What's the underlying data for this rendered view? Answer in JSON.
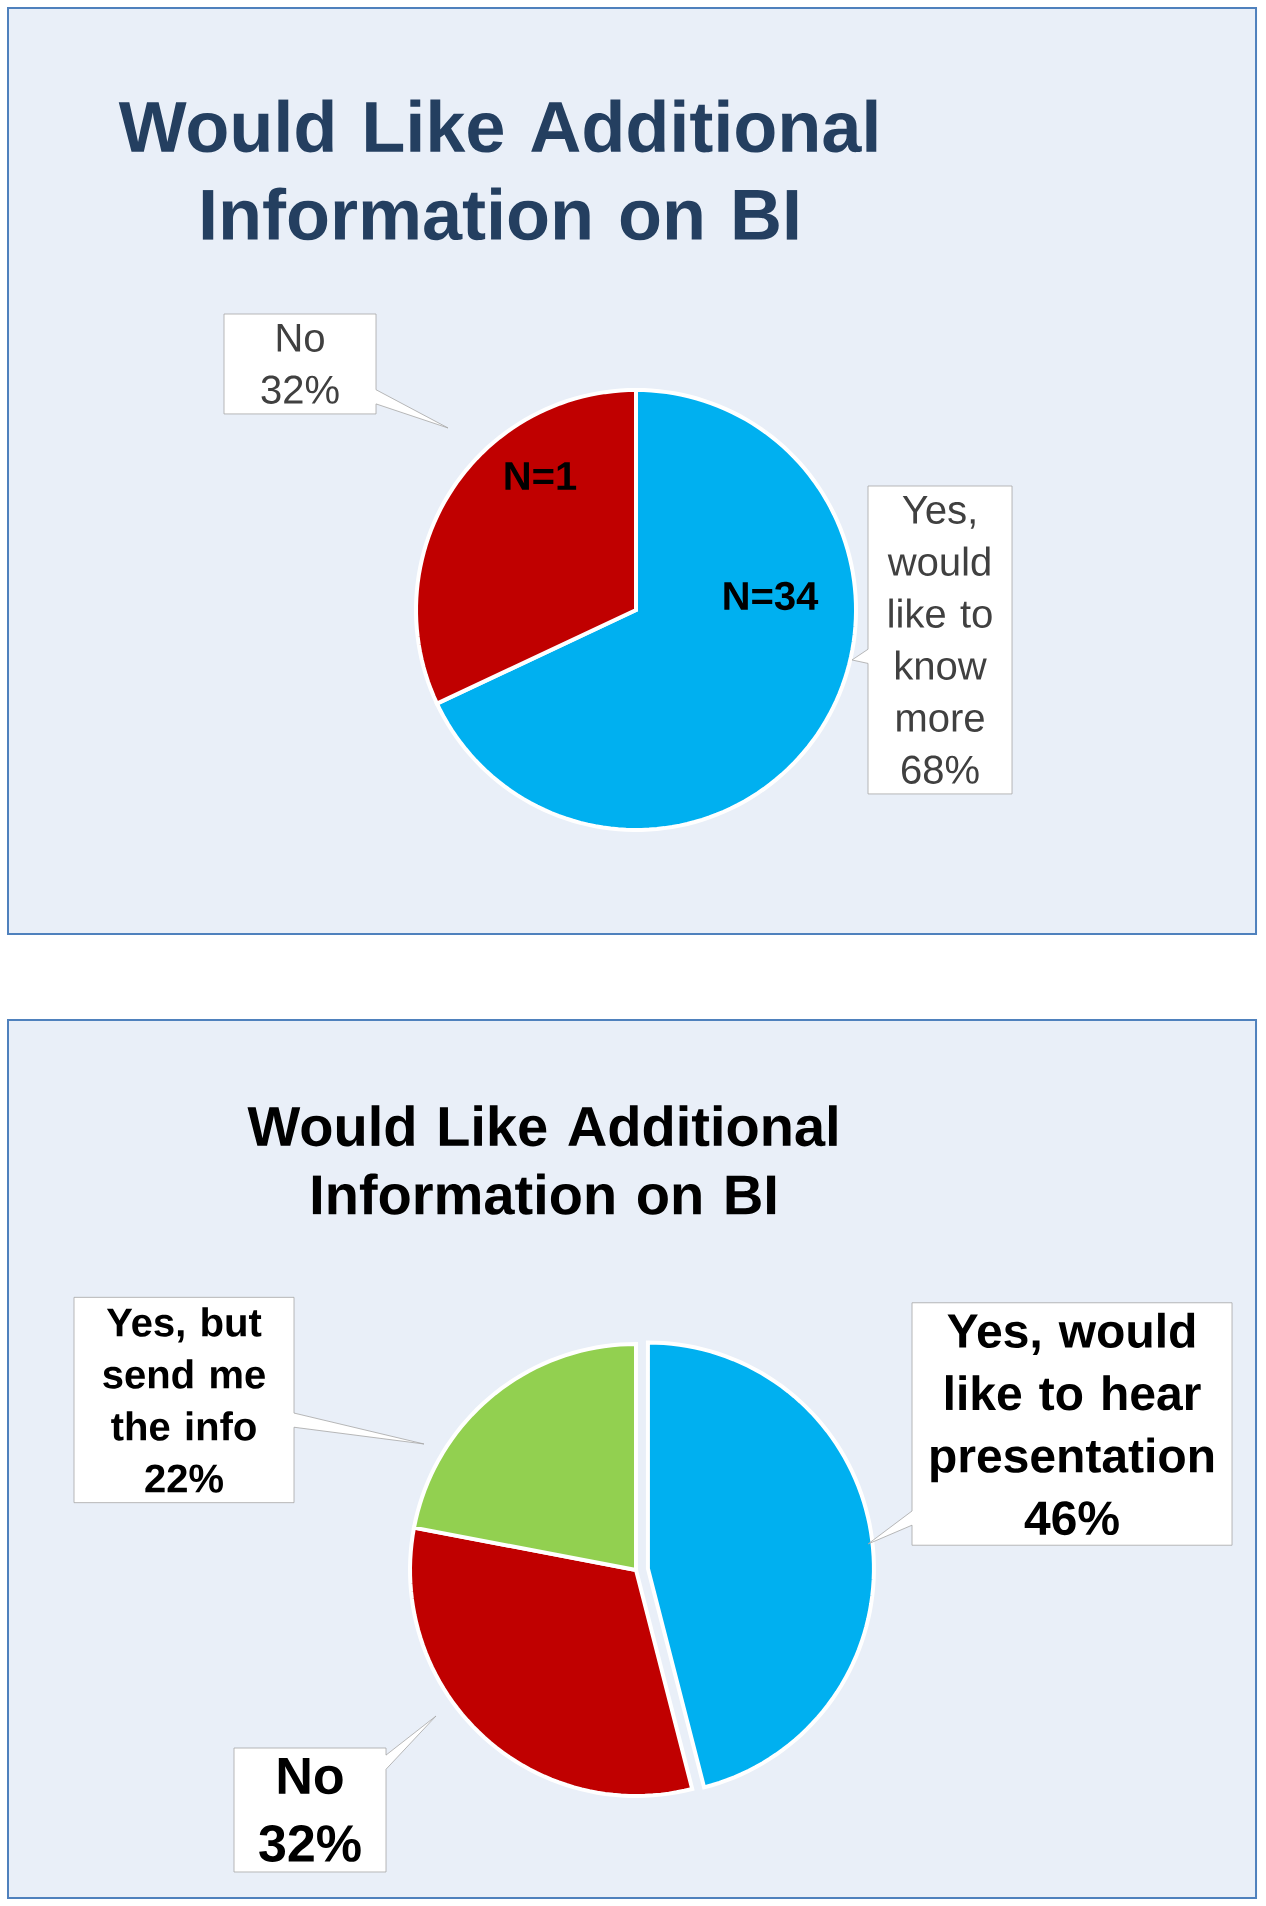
{
  "chart_data": [
    {
      "type": "pie",
      "title": "Would Like Additional Information on BI",
      "categories": [
        "Yes, would like to know more",
        "No"
      ],
      "values": [
        68,
        32
      ],
      "colors": [
        "#00b0f0",
        "#c00000"
      ],
      "value_labels": [
        "68%",
        "32%"
      ],
      "annotations": [
        "N=34",
        "N=1"
      ]
    },
    {
      "type": "pie",
      "title": "Would Like Additional Information on BI",
      "categories": [
        "Yes, would like to hear presentation",
        "No",
        "Yes, but send me the info"
      ],
      "values": [
        46,
        32,
        22
      ],
      "colors": [
        "#00b0f0",
        "#c00000",
        "#92d050"
      ],
      "value_labels": [
        "46%",
        "32%",
        "22%"
      ]
    }
  ]
}
